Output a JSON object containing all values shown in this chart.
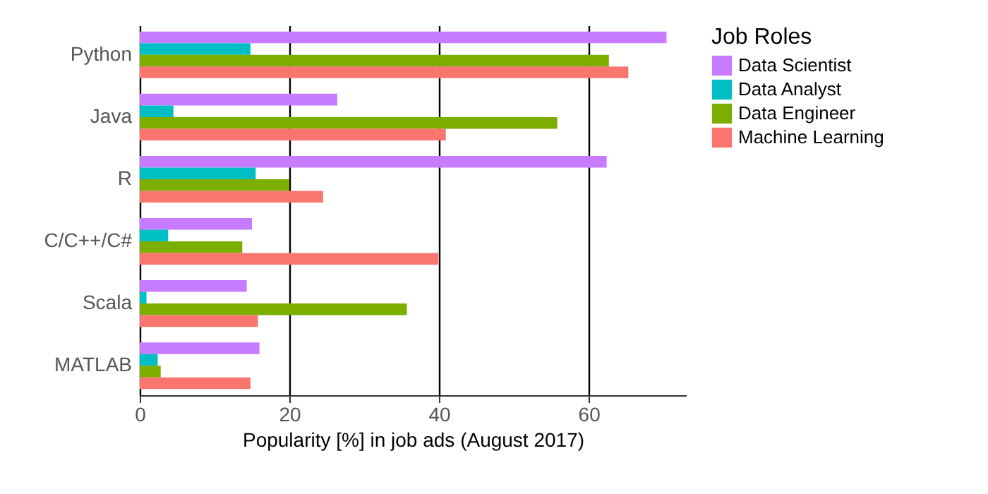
{
  "chart_data": {
    "type": "bar",
    "orientation": "horizontal",
    "xlabel": "Popularity [%] in job ads (August 2017)",
    "legend_title": "Job Roles",
    "categories": [
      "Python",
      "Java",
      "R",
      "C/C++/C#",
      "Scala",
      "MATLAB"
    ],
    "series": [
      {
        "name": "Data Scientist",
        "color": "#c77cff",
        "values": [
          70.4,
          26.4,
          62.4,
          15,
          14.3,
          16
        ]
      },
      {
        "name": "Data Analyst",
        "color": "#00bfc4",
        "values": [
          14.8,
          4.5,
          15.5,
          3.8,
          0.9,
          2.4
        ]
      },
      {
        "name": "Data Engineer",
        "color": "#7cae00",
        "values": [
          62.7,
          55.8,
          20,
          13.7,
          35.7,
          2.8
        ]
      },
      {
        "name": "Machine Learning",
        "color": "#f8766d",
        "values": [
          65.3,
          40.9,
          24.5,
          39.9,
          15.8,
          14.8
        ]
      }
    ],
    "xlim": [
      0,
      73
    ],
    "xticks": [
      0,
      20,
      40,
      60
    ],
    "grid": "x",
    "legend": "right"
  }
}
